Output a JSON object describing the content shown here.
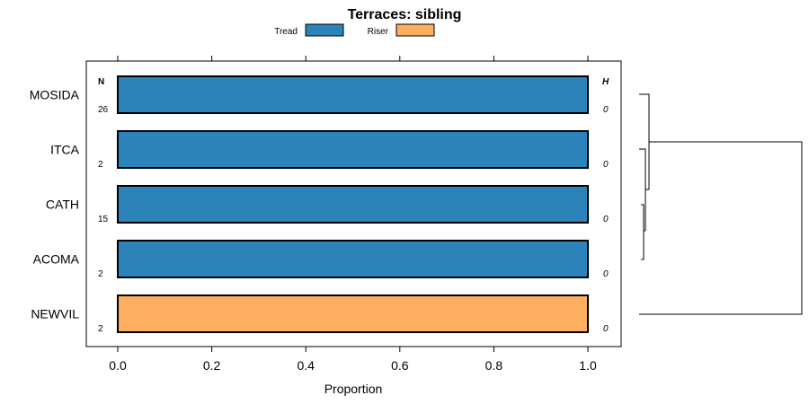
{
  "chart_data": {
    "type": "bar",
    "orientation": "horizontal",
    "stacked": true,
    "title": "Terraces: sibling",
    "xlabel": "Proportion",
    "ylabel": "",
    "xlim": [
      0,
      1
    ],
    "x_ticks": [
      "0.0",
      "0.2",
      "0.4",
      "0.6",
      "0.8",
      "1.0"
    ],
    "x_tick_values": [
      0,
      0.2,
      0.4,
      0.6,
      0.8,
      1.0
    ],
    "legend_position": "top",
    "categories": [
      "MOSIDA",
      "ITCA",
      "CATH",
      "ACOMA",
      "NEWVIL"
    ],
    "series": [
      {
        "name": "Tread",
        "color": "#2B83BA",
        "values": [
          1,
          1,
          1,
          1,
          0
        ]
      },
      {
        "name": "Riser",
        "color": "#FDAE61",
        "values": [
          0,
          0,
          0,
          0,
          1
        ]
      }
    ],
    "n_header": "N",
    "h_header": "H",
    "n_values": [
      "26",
      "2",
      "15",
      "2",
      "2"
    ],
    "h_values": [
      "0",
      "0",
      "0",
      "0",
      "0"
    ],
    "dendrogram": "right-side cluster tree grouping MOSIDA, ITCA, CATH, ACOMA; NEWVIL separate"
  }
}
